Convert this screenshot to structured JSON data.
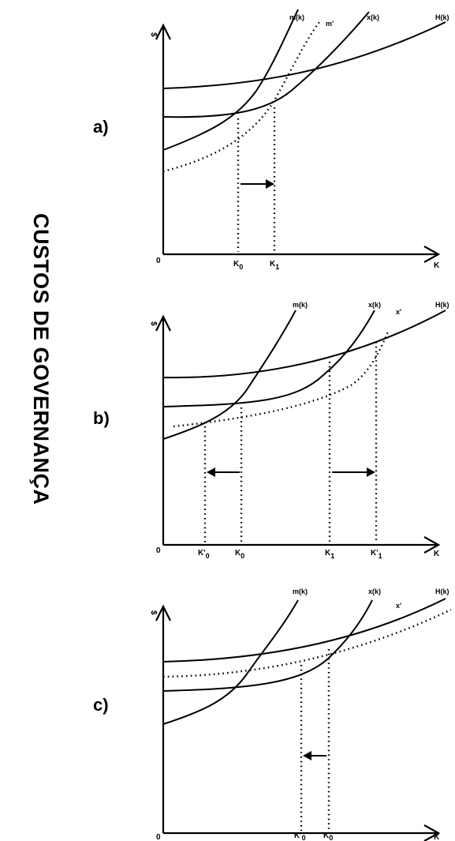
{
  "side_title": "CUSTOS DE GOVERNANÇA",
  "panels": [
    {
      "label": "a)",
      "y_axis_label": "$",
      "x_axis_label": "K",
      "origin_label": "0",
      "curves": {
        "m": "m(k)",
        "m_shift": "m'",
        "x": "x(k)",
        "H": "H(k)"
      },
      "k_ticks": [
        {
          "base": "K",
          "sub": "0"
        },
        {
          "base": "K",
          "sub": "1"
        }
      ]
    },
    {
      "label": "b)",
      "y_axis_label": "$",
      "x_axis_label": "K",
      "origin_label": "0",
      "curves": {
        "m": "m(k)",
        "x": "x(k)",
        "x_shift": "x'",
        "H": "H(k)"
      },
      "k_ticks": [
        {
          "base": "K'",
          "sub": "0"
        },
        {
          "base": "K",
          "sub": "0"
        },
        {
          "base": "K",
          "sub": "1"
        },
        {
          "base": "K'",
          "sub": "1"
        }
      ]
    },
    {
      "label": "c)",
      "y_axis_label": "$",
      "x_axis_label": "K",
      "origin_label": "0",
      "curves": {
        "m": "m(k)",
        "x": "x(k)",
        "x_shift": "x'",
        "H": "H(k)"
      },
      "k_ticks": [
        {
          "base": "K'",
          "sub": "0"
        },
        {
          "base": "K",
          "sub": "0"
        }
      ]
    }
  ]
}
